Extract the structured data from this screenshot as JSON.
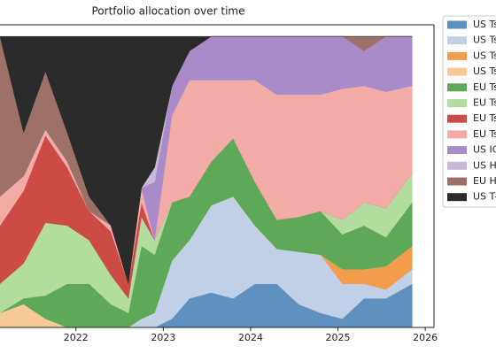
{
  "chart_data": {
    "type": "stackedarea",
    "title": "Portfolio allocation over time",
    "x": [
      2021.13,
      2021.4,
      2021.65,
      2021.9,
      2022.15,
      2022.4,
      2022.6,
      2022.75,
      2022.9,
      2023.1,
      2023.3,
      2023.55,
      2023.8,
      2024.05,
      2024.3,
      2024.55,
      2024.8,
      2025.05,
      2025.3,
      2025.55,
      2025.85
    ],
    "xlim": [
      2021.13,
      2026.1
    ],
    "xticks": [
      2022,
      2023,
      2024,
      2025,
      2026
    ],
    "ylim": [
      0,
      104
    ],
    "legend": "outside-right",
    "series": [
      {
        "name": "US Ts",
        "color": "#5e90c0",
        "values": [
          0,
          0,
          0,
          0,
          0,
          0,
          0,
          0,
          0,
          3,
          10,
          12,
          10,
          15,
          15,
          8,
          5,
          3,
          10,
          10,
          15
        ]
      },
      {
        "name": "US Ts",
        "color": "#c1d0e7",
        "values": [
          0,
          0,
          0,
          0,
          0,
          0,
          0,
          3,
          5,
          20,
          20,
          30,
          35,
          20,
          12,
          18,
          20,
          12,
          5,
          3,
          5
        ]
      },
      {
        "name": "US Ts",
        "color": "#f29c4c",
        "values": [
          0,
          0,
          0,
          0,
          0,
          0,
          0,
          0,
          0,
          0,
          0,
          0,
          0,
          0,
          0,
          0,
          0,
          5,
          5,
          8,
          8
        ]
      },
      {
        "name": "US Ts",
        "color": "#f8c995",
        "values": [
          5,
          8,
          3,
          0,
          0,
          0,
          0,
          0,
          0,
          0,
          0,
          0,
          0,
          0,
          0,
          0,
          0,
          0,
          0,
          0,
          0
        ]
      },
      {
        "name": "EU Ts",
        "color": "#5ea957",
        "values": [
          0,
          2,
          8,
          15,
          15,
          8,
          5,
          25,
          20,
          20,
          15,
          15,
          20,
          15,
          10,
          12,
          15,
          12,
          15,
          10,
          15
        ]
      },
      {
        "name": "EU Ts",
        "color": "#b2dd9f",
        "values": [
          10,
          12,
          25,
          20,
          15,
          10,
          5,
          10,
          5,
          0,
          0,
          0,
          0,
          0,
          0,
          0,
          0,
          5,
          8,
          10,
          10
        ]
      },
      {
        "name": "EU Ts",
        "color": "#cc4b45",
        "values": [
          20,
          25,
          30,
          20,
          10,
          15,
          5,
          5,
          0,
          0,
          0,
          0,
          0,
          0,
          0,
          0,
          0,
          0,
          0,
          0,
          0
        ]
      },
      {
        "name": "EU Ts",
        "color": "#f3aba7",
        "values": [
          10,
          5,
          2,
          2,
          0,
          2,
          0,
          5,
          0,
          30,
          40,
          28,
          20,
          35,
          43,
          42,
          40,
          45,
          40,
          40,
          30
        ]
      },
      {
        "name": "US IG",
        "color": "#a98bca",
        "values": [
          0,
          0,
          0,
          0,
          0,
          0,
          0,
          0,
          20,
          10,
          10,
          15,
          15,
          15,
          20,
          20,
          20,
          18,
          12,
          19,
          17
        ]
      },
      {
        "name": "US H",
        "color": "#cab8da",
        "values": [
          0,
          0,
          0,
          0,
          0,
          0,
          0,
          0,
          5,
          0,
          0,
          0,
          0,
          0,
          0,
          0,
          0,
          0,
          0,
          0,
          0
        ]
      },
      {
        "name": "EU H",
        "color": "#9d7068",
        "values": [
          55,
          15,
          20,
          10,
          5,
          0,
          0,
          0,
          0,
          0,
          0,
          0,
          0,
          0,
          0,
          0,
          0,
          0,
          5,
          0,
          0
        ]
      },
      {
        "name": "US T-",
        "color": "#2b2b2b",
        "values": [
          0,
          33,
          12,
          33,
          55,
          65,
          85,
          52,
          45,
          17,
          5,
          0,
          0,
          0,
          0,
          0,
          0,
          0,
          0,
          0,
          0
        ]
      }
    ]
  }
}
